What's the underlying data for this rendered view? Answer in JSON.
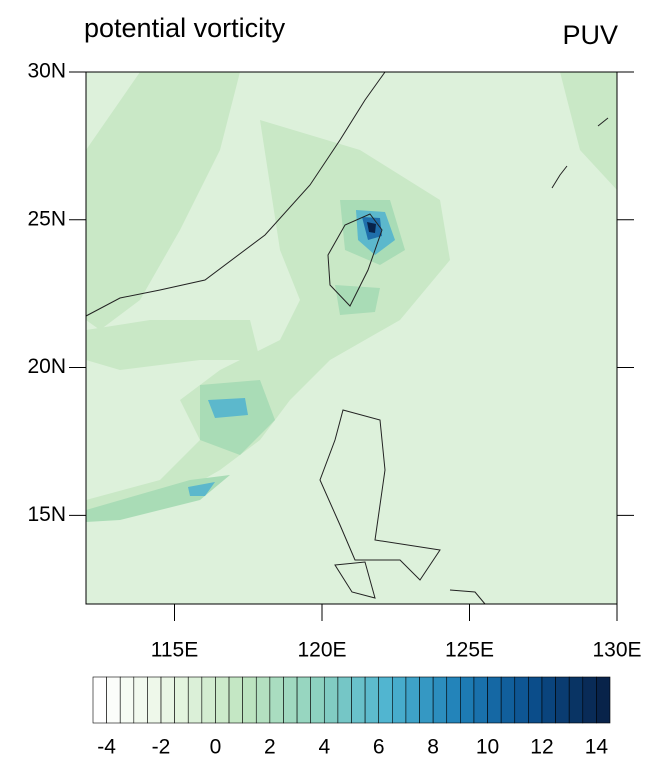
{
  "chart_data": {
    "type": "map",
    "title": "potential vorticity",
    "right_title": "PUV",
    "xlim": [
      112,
      130
    ],
    "ylim": [
      12,
      30
    ],
    "xticks": [
      {
        "value": 115,
        "label": "115E"
      },
      {
        "value": 120,
        "label": "120E"
      },
      {
        "value": 125,
        "label": "125E"
      },
      {
        "value": 130,
        "label": "130E"
      }
    ],
    "yticks": [
      {
        "value": 15,
        "label": "15N"
      },
      {
        "value": 20,
        "label": "20N"
      },
      {
        "value": 25,
        "label": "25N"
      },
      {
        "value": 30,
        "label": "30N"
      }
    ],
    "colorbar": {
      "clim": [
        -4.5,
        14.5
      ],
      "nlevels": 38,
      "ticks": [
        -4,
        -2,
        0,
        2,
        4,
        6,
        8,
        10,
        12,
        14
      ],
      "colors": [
        "#ffffff",
        "#e8f6e3",
        "#c0e5c0",
        "#8fd3c0",
        "#4fb4d0",
        "#1f80b8",
        "#0b4f8e",
        "#08234a"
      ]
    }
  }
}
